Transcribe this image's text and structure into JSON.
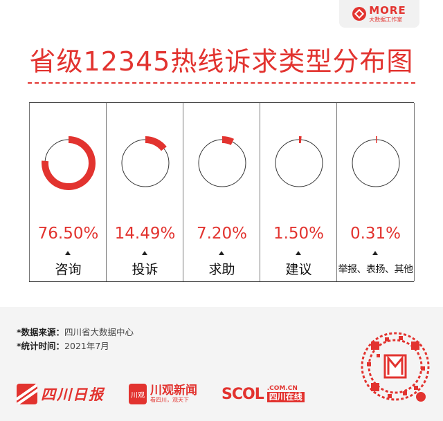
{
  "brand": {
    "name": "MORE",
    "sub": "大数据工作室"
  },
  "title": "省级12345热线诉求类型分布图",
  "chart_data": {
    "type": "pie",
    "title": "省级12345热线诉求类型分布图",
    "categories": [
      "咨询",
      "投诉",
      "求助",
      "建议",
      "举报、表扬、其他"
    ],
    "values": [
      76.5,
      14.49,
      7.2,
      1.5,
      0.31
    ],
    "value_labels": [
      "76.50%",
      "14.49%",
      "7.20%",
      "1.50%",
      "0.31%"
    ],
    "unit": "%"
  },
  "colors": {
    "accent": "#e2332f",
    "ring": "#333333"
  },
  "source": {
    "label": "*数据来源：",
    "value": "四川省大数据中心",
    "time_label": "*统计时间：",
    "time_value": "2021年7月"
  },
  "logos": {
    "scdaily": "四川日报",
    "chuanguan": {
      "mark": "川观",
      "name": "川观新闻",
      "slogan": "看四川，观天下"
    },
    "scol": {
      "mark": "SCOL",
      "domain": ".COM.CN",
      "name": "四川在线"
    }
  },
  "icons": [
    "more-logo-icon",
    "qr-code-icon"
  ]
}
